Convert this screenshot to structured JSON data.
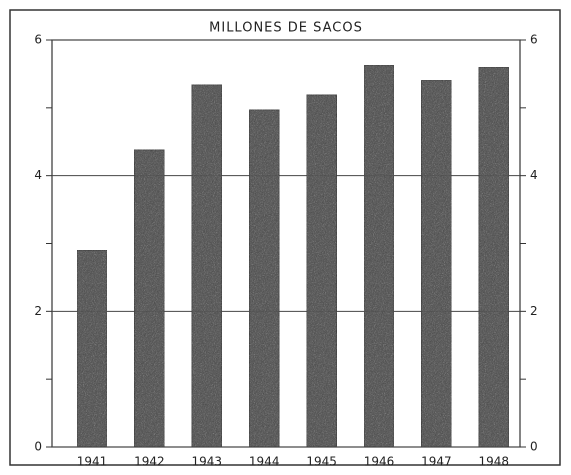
{
  "chart_data": {
    "type": "bar",
    "title": "MILLONES DE SACOS",
    "categories": [
      "1941",
      "1942",
      "1943",
      "1944",
      "1945",
      "1946",
      "1947",
      "1948"
    ],
    "values": [
      2.9,
      4.38,
      5.34,
      4.97,
      5.19,
      5.63,
      5.41,
      5.6
    ],
    "color": "#4a4a4a",
    "ylim": [
      0,
      6
    ],
    "yticks": [
      0,
      2,
      4,
      6
    ],
    "y_minor_ticks": [
      1,
      3,
      5
    ],
    "y2lim": [
      0,
      6
    ],
    "y2ticks": [
      0,
      2,
      4,
      6
    ],
    "grid": true
  }
}
